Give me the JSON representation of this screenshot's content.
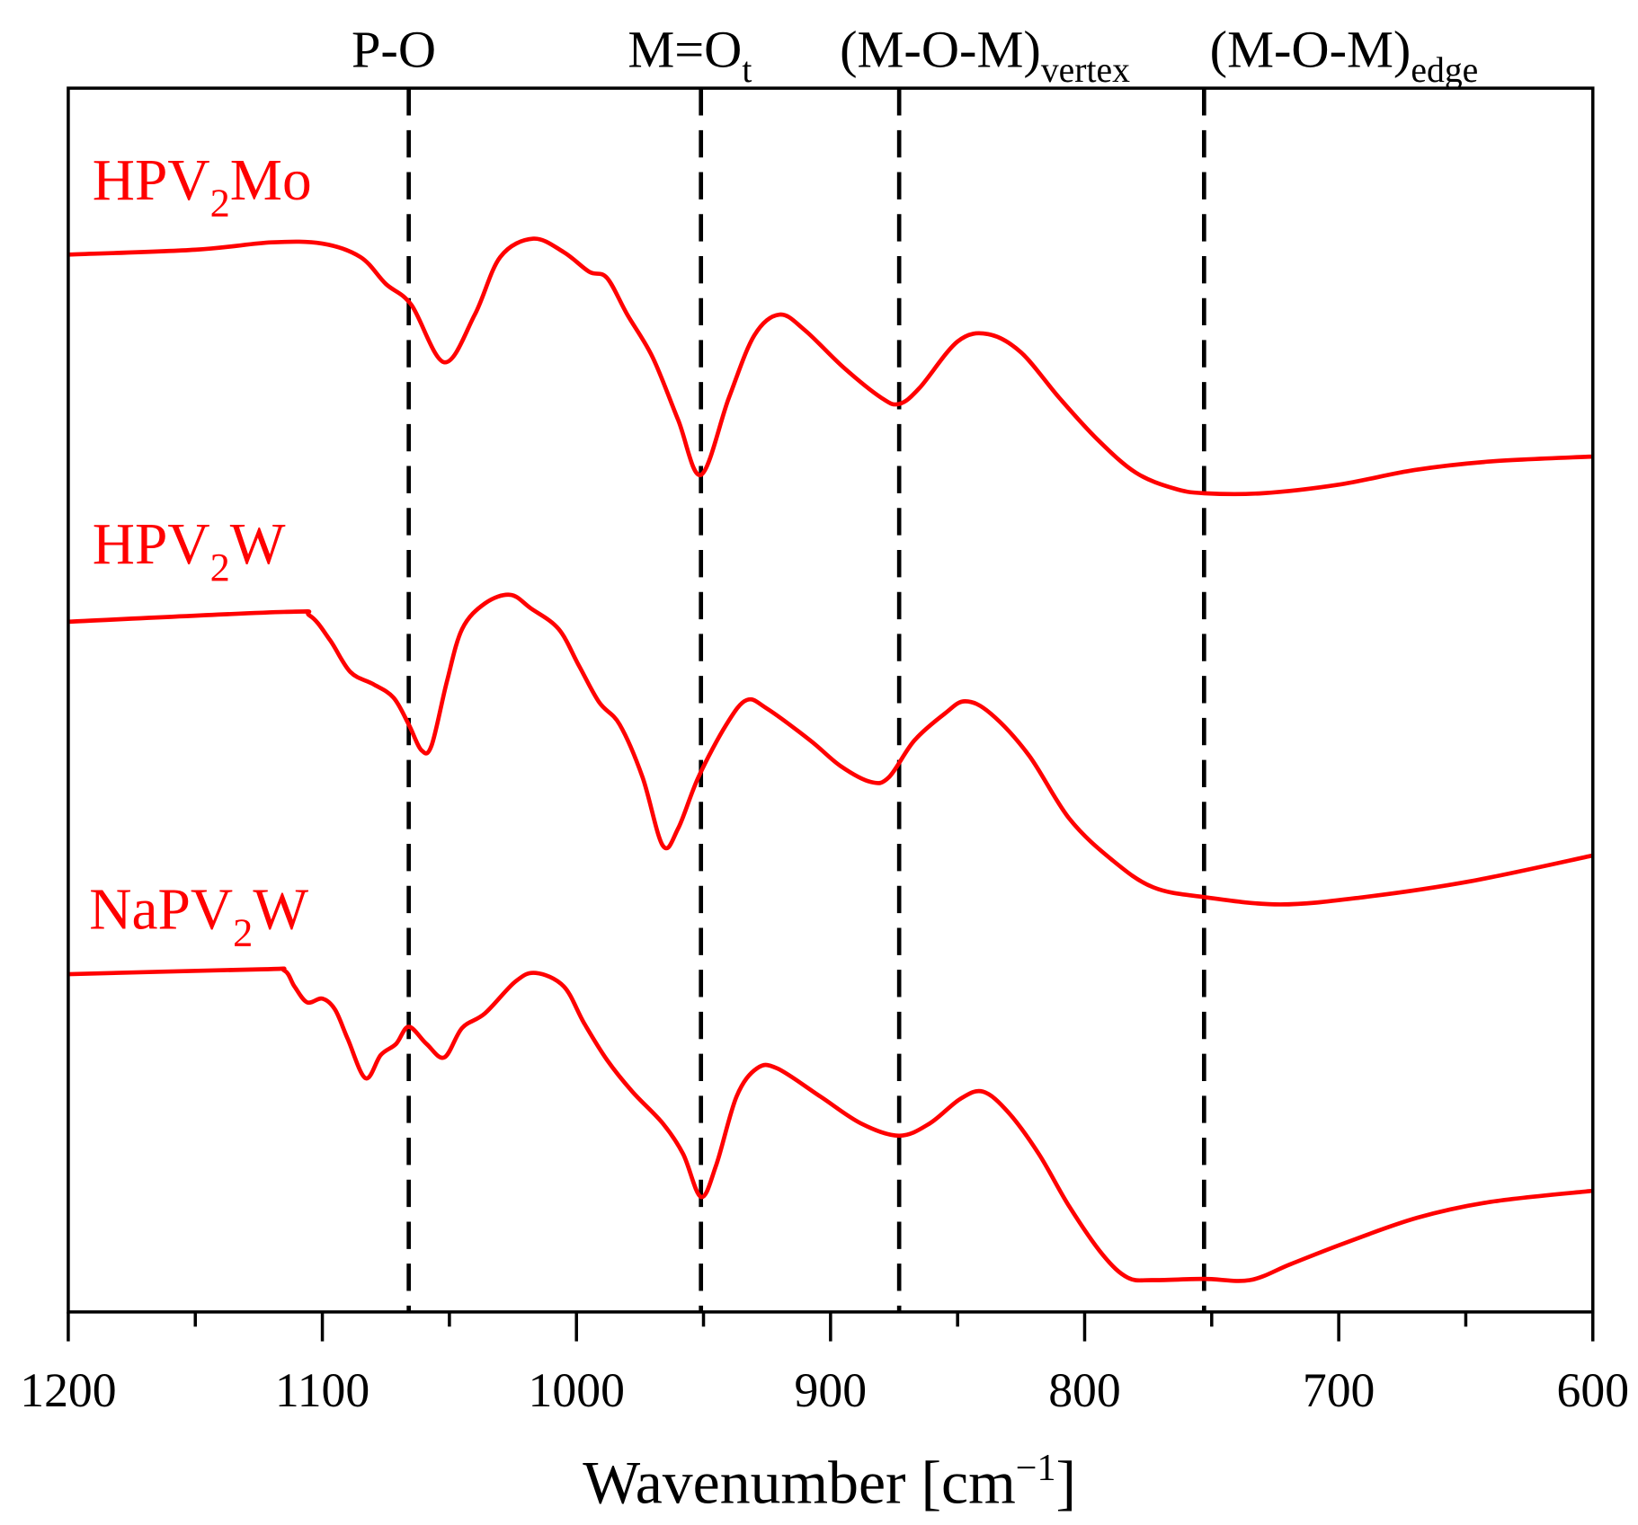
{
  "chart_data": {
    "type": "line",
    "title": "",
    "xlabel": "Wavenumber [cm",
    "xlabel_sup": "−1",
    "xlabel_close": "]",
    "ylabel": "",
    "xlim": [
      1200,
      600
    ],
    "ylim": [
      0,
      100
    ],
    "x_ticks": [
      1200,
      1100,
      1000,
      900,
      800,
      700,
      600
    ],
    "x_tick_labels": [
      "1200",
      "1100",
      "1000",
      "900",
      "800",
      "700",
      "600"
    ],
    "minor_ticks": [
      1150,
      1050,
      950,
      850,
      750,
      650
    ],
    "grid": false,
    "line_color": "#ff0000",
    "reference_lines": [
      {
        "x": 1066,
        "label": "P-O",
        "sub": ""
      },
      {
        "x": 951,
        "label": "M=O",
        "sub": "t"
      },
      {
        "x": 873,
        "label": "(M-O-M)",
        "sub": "vertex"
      },
      {
        "x": 753,
        "label": "(M-O-M)",
        "sub": "edge"
      }
    ],
    "series": [
      {
        "name": "HPV2Mo",
        "label_main": "HPV",
        "label_sub": "2",
        "label_end": "Mo",
        "points": [
          [
            1200,
            86.4
          ],
          [
            1150,
            86.8
          ],
          [
            1120,
            87.4
          ],
          [
            1100,
            87.3
          ],
          [
            1085,
            86.2
          ],
          [
            1075,
            84.0
          ],
          [
            1065,
            82.3
          ],
          [
            1052,
            77.6
          ],
          [
            1040,
            81.5
          ],
          [
            1030,
            86.2
          ],
          [
            1017,
            87.7
          ],
          [
            1005,
            86.6
          ],
          [
            995,
            85.0
          ],
          [
            988,
            84.5
          ],
          [
            980,
            81.5
          ],
          [
            970,
            78.0
          ],
          [
            960,
            72.9
          ],
          [
            951,
            68.4
          ],
          [
            940,
            74.7
          ],
          [
            930,
            79.8
          ],
          [
            920,
            81.5
          ],
          [
            910,
            80.2
          ],
          [
            895,
            77.2
          ],
          [
            880,
            74.7
          ],
          [
            873,
            74.2
          ],
          [
            865,
            75.5
          ],
          [
            850,
            79.3
          ],
          [
            838,
            79.9
          ],
          [
            825,
            78.4
          ],
          [
            810,
            74.7
          ],
          [
            795,
            71.3
          ],
          [
            780,
            68.6
          ],
          [
            765,
            67.3
          ],
          [
            753,
            66.9
          ],
          [
            730,
            66.9
          ],
          [
            700,
            67.6
          ],
          [
            670,
            68.8
          ],
          [
            640,
            69.5
          ],
          [
            600,
            69.9
          ]
        ]
      },
      {
        "name": "HPV2W",
        "label_main": "HPV",
        "label_sub": "2",
        "label_end": "W",
        "points": [
          [
            1200,
            56.4
          ],
          [
            1115,
            57.2
          ],
          [
            1105,
            56.9
          ],
          [
            1097,
            54.9
          ],
          [
            1089,
            52.3
          ],
          [
            1080,
            51.3
          ],
          [
            1072,
            50.2
          ],
          [
            1066,
            48.0
          ],
          [
            1061,
            45.9
          ],
          [
            1057,
            46.3
          ],
          [
            1051,
            51.5
          ],
          [
            1045,
            55.8
          ],
          [
            1036,
            57.9
          ],
          [
            1026,
            58.6
          ],
          [
            1018,
            57.5
          ],
          [
            1007,
            55.8
          ],
          [
            999,
            52.8
          ],
          [
            991,
            49.8
          ],
          [
            983,
            48.0
          ],
          [
            974,
            43.7
          ],
          [
            966,
            38.1
          ],
          [
            960,
            39.5
          ],
          [
            952,
            43.7
          ],
          [
            941,
            48.0
          ],
          [
            933,
            50.0
          ],
          [
            925,
            49.3
          ],
          [
            908,
            46.7
          ],
          [
            896,
            44.6
          ],
          [
            884,
            43.3
          ],
          [
            877,
            43.7
          ],
          [
            867,
            46.7
          ],
          [
            855,
            48.9
          ],
          [
            847,
            49.9
          ],
          [
            837,
            48.9
          ],
          [
            822,
            45.5
          ],
          [
            806,
            40.3
          ],
          [
            789,
            36.9
          ],
          [
            773,
            34.7
          ],
          [
            753,
            33.9
          ],
          [
            723,
            33.3
          ],
          [
            690,
            33.9
          ],
          [
            648,
            35.2
          ],
          [
            600,
            37.3
          ]
        ]
      },
      {
        "name": "NaPV2W",
        "label_main": "NaPV",
        "label_sub": "2",
        "label_end": "W",
        "points": [
          [
            1200,
            27.6
          ],
          [
            1124,
            28.0
          ],
          [
            1115,
            27.9
          ],
          [
            1111,
            26.6
          ],
          [
            1106,
            25.3
          ],
          [
            1100,
            25.6
          ],
          [
            1095,
            24.7
          ],
          [
            1090,
            22.3
          ],
          [
            1083,
            19.1
          ],
          [
            1077,
            21.0
          ],
          [
            1071,
            21.9
          ],
          [
            1066,
            23.3
          ],
          [
            1059,
            21.9
          ],
          [
            1052,
            20.8
          ],
          [
            1045,
            23.2
          ],
          [
            1036,
            24.4
          ],
          [
            1024,
            27.0
          ],
          [
            1016,
            27.7
          ],
          [
            1005,
            26.6
          ],
          [
            997,
            23.6
          ],
          [
            988,
            20.6
          ],
          [
            978,
            18.0
          ],
          [
            966,
            15.4
          ],
          [
            958,
            12.9
          ],
          [
            951,
            9.4
          ],
          [
            945,
            12.0
          ],
          [
            937,
            17.6
          ],
          [
            929,
            19.9
          ],
          [
            921,
            19.9
          ],
          [
            904,
            17.6
          ],
          [
            888,
            15.4
          ],
          [
            873,
            14.4
          ],
          [
            861,
            15.4
          ],
          [
            849,
            17.4
          ],
          [
            840,
            18.0
          ],
          [
            830,
            16.3
          ],
          [
            818,
            12.9
          ],
          [
            806,
            8.6
          ],
          [
            793,
            4.7
          ],
          [
            783,
            2.8
          ],
          [
            773,
            2.6
          ],
          [
            753,
            2.7
          ],
          [
            735,
            2.6
          ],
          [
            719,
            3.9
          ],
          [
            698,
            5.6
          ],
          [
            669,
            7.7
          ],
          [
            640,
            9.0
          ],
          [
            600,
            9.9
          ]
        ]
      }
    ]
  }
}
